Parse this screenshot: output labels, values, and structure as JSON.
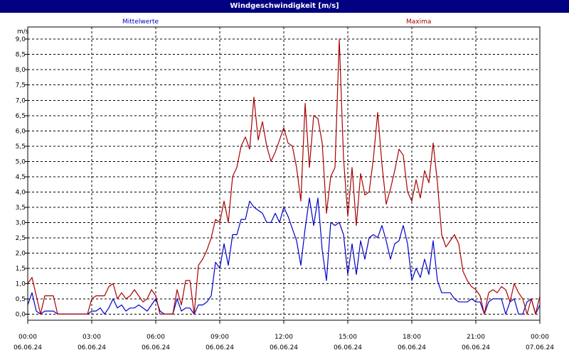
{
  "title": "Windgeschwindigkeit [m/s]",
  "chart_data": {
    "type": "line",
    "title": "Windgeschwindigkeit [m/s]",
    "ylabel": "m/s",
    "ylim": [
      -0.2,
      9.4
    ],
    "yticks": [
      "0,0",
      "0,5",
      "1,0",
      "1,5",
      "2,0",
      "2,5",
      "3,0",
      "3,5",
      "4,0",
      "4,5",
      "5,0",
      "5,5",
      "6,0",
      "6,5",
      "7,0",
      "7,5",
      "8,0",
      "8,5",
      "9,0"
    ],
    "xticks": [
      {
        "time": "00:00",
        "date": "06.06.24"
      },
      {
        "time": "03:00",
        "date": "06.06.24"
      },
      {
        "time": "06:00",
        "date": "06.06.24"
      },
      {
        "time": "09:00",
        "date": "06.06.24"
      },
      {
        "time": "12:00",
        "date": "06.06.24"
      },
      {
        "time": "15:00",
        "date": "06.06.24"
      },
      {
        "time": "18:00",
        "date": "06.06.24"
      },
      {
        "time": "21:00",
        "date": "06.06.24"
      },
      {
        "time": "00:00",
        "date": "07.06.24"
      }
    ],
    "grid": true,
    "series": [
      {
        "name": "Mittelwerte",
        "color": "#0000cc",
        "values": [
          [
            0.0,
            0.3
          ],
          [
            0.2,
            0.7
          ],
          [
            0.4,
            0.1
          ],
          [
            0.6,
            0.0
          ],
          [
            0.8,
            0.1
          ],
          [
            1.0,
            0.1
          ],
          [
            1.2,
            0.1
          ],
          [
            1.4,
            0.0
          ],
          [
            1.6,
            0.0
          ],
          [
            1.8,
            0.0
          ],
          [
            2.0,
            0.0
          ],
          [
            2.2,
            0.0
          ],
          [
            2.4,
            0.0
          ],
          [
            2.6,
            0.0
          ],
          [
            2.8,
            0.0
          ],
          [
            3.0,
            0.1
          ],
          [
            3.2,
            0.1
          ],
          [
            3.4,
            0.2
          ],
          [
            3.6,
            0.0
          ],
          [
            3.8,
            0.2
          ],
          [
            4.0,
            0.5
          ],
          [
            4.2,
            0.2
          ],
          [
            4.4,
            0.3
          ],
          [
            4.6,
            0.1
          ],
          [
            4.8,
            0.2
          ],
          [
            5.0,
            0.2
          ],
          [
            5.2,
            0.3
          ],
          [
            5.4,
            0.2
          ],
          [
            5.6,
            0.1
          ],
          [
            5.8,
            0.3
          ],
          [
            6.0,
            0.5
          ],
          [
            6.2,
            0.1
          ],
          [
            6.4,
            0.0
          ],
          [
            6.6,
            0.0
          ],
          [
            6.8,
            0.0
          ],
          [
            7.0,
            0.5
          ],
          [
            7.2,
            0.1
          ],
          [
            7.4,
            0.2
          ],
          [
            7.6,
            0.2
          ],
          [
            7.8,
            0.0
          ],
          [
            8.0,
            0.3
          ],
          [
            8.2,
            0.3
          ],
          [
            8.4,
            0.4
          ],
          [
            8.6,
            0.6
          ],
          [
            8.8,
            1.7
          ],
          [
            9.0,
            1.5
          ],
          [
            9.2,
            2.3
          ],
          [
            9.4,
            1.6
          ],
          [
            9.6,
            2.6
          ],
          [
            9.8,
            2.6
          ],
          [
            10.0,
            3.1
          ],
          [
            10.2,
            3.1
          ],
          [
            10.4,
            3.7
          ],
          [
            10.6,
            3.5
          ],
          [
            10.8,
            3.4
          ],
          [
            11.0,
            3.3
          ],
          [
            11.2,
            3.0
          ],
          [
            11.4,
            3.0
          ],
          [
            11.6,
            3.3
          ],
          [
            11.8,
            3.0
          ],
          [
            12.0,
            3.5
          ],
          [
            12.2,
            3.2
          ],
          [
            12.4,
            2.8
          ],
          [
            12.6,
            2.4
          ],
          [
            12.8,
            1.6
          ],
          [
            13.0,
            2.8
          ],
          [
            13.2,
            3.8
          ],
          [
            13.4,
            2.9
          ],
          [
            13.6,
            3.8
          ],
          [
            13.8,
            2.1
          ],
          [
            14.0,
            1.1
          ],
          [
            14.2,
            3.0
          ],
          [
            14.4,
            2.9
          ],
          [
            14.6,
            3.0
          ],
          [
            14.8,
            2.6
          ],
          [
            15.0,
            1.3
          ],
          [
            15.2,
            2.3
          ],
          [
            15.4,
            1.3
          ],
          [
            15.6,
            2.4
          ],
          [
            15.8,
            1.8
          ],
          [
            16.0,
            2.5
          ],
          [
            16.2,
            2.6
          ],
          [
            16.4,
            2.5
          ],
          [
            16.6,
            2.9
          ],
          [
            16.8,
            2.4
          ],
          [
            17.0,
            1.8
          ],
          [
            17.2,
            2.3
          ],
          [
            17.4,
            2.4
          ],
          [
            17.6,
            2.9
          ],
          [
            17.8,
            2.3
          ],
          [
            18.0,
            1.1
          ],
          [
            18.2,
            1.5
          ],
          [
            18.4,
            1.2
          ],
          [
            18.6,
            1.8
          ],
          [
            18.8,
            1.3
          ],
          [
            19.0,
            2.4
          ],
          [
            19.2,
            1.1
          ],
          [
            19.4,
            0.7
          ],
          [
            19.6,
            0.7
          ],
          [
            19.8,
            0.7
          ],
          [
            20.0,
            0.5
          ],
          [
            20.2,
            0.4
          ],
          [
            20.4,
            0.4
          ],
          [
            20.6,
            0.4
          ],
          [
            20.8,
            0.5
          ],
          [
            21.0,
            0.4
          ],
          [
            21.2,
            0.4
          ],
          [
            21.4,
            0.0
          ],
          [
            21.6,
            0.4
          ],
          [
            21.8,
            0.5
          ],
          [
            22.0,
            0.5
          ],
          [
            22.2,
            0.5
          ],
          [
            22.4,
            0.0
          ],
          [
            22.6,
            0.4
          ],
          [
            22.8,
            0.5
          ],
          [
            23.0,
            0.0
          ],
          [
            23.2,
            0.0
          ],
          [
            23.4,
            0.4
          ],
          [
            23.6,
            0.5
          ],
          [
            23.8,
            0.0
          ],
          [
            24.0,
            0.3
          ]
        ]
      },
      {
        "name": "Maxima",
        "color": "#aa0000",
        "values": [
          [
            0.0,
            1.0
          ],
          [
            0.2,
            1.2
          ],
          [
            0.4,
            0.6
          ],
          [
            0.6,
            0.0
          ],
          [
            0.8,
            0.6
          ],
          [
            1.0,
            0.6
          ],
          [
            1.2,
            0.6
          ],
          [
            1.4,
            0.0
          ],
          [
            1.6,
            0.0
          ],
          [
            1.8,
            0.0
          ],
          [
            2.0,
            0.0
          ],
          [
            2.2,
            0.0
          ],
          [
            2.4,
            0.0
          ],
          [
            2.6,
            0.0
          ],
          [
            2.8,
            0.0
          ],
          [
            3.0,
            0.5
          ],
          [
            3.2,
            0.6
          ],
          [
            3.4,
            0.6
          ],
          [
            3.6,
            0.6
          ],
          [
            3.8,
            0.9
          ],
          [
            4.0,
            1.0
          ],
          [
            4.2,
            0.5
          ],
          [
            4.4,
            0.7
          ],
          [
            4.6,
            0.5
          ],
          [
            4.8,
            0.6
          ],
          [
            5.0,
            0.8
          ],
          [
            5.2,
            0.6
          ],
          [
            5.4,
            0.4
          ],
          [
            5.6,
            0.5
          ],
          [
            5.8,
            0.8
          ],
          [
            6.0,
            0.6
          ],
          [
            6.2,
            0.0
          ],
          [
            6.4,
            0.0
          ],
          [
            6.6,
            0.0
          ],
          [
            6.8,
            0.0
          ],
          [
            7.0,
            0.8
          ],
          [
            7.2,
            0.3
          ],
          [
            7.4,
            1.1
          ],
          [
            7.6,
            1.1
          ],
          [
            7.8,
            0.0
          ],
          [
            8.0,
            1.6
          ],
          [
            8.2,
            1.8
          ],
          [
            8.4,
            2.1
          ],
          [
            8.6,
            2.5
          ],
          [
            8.8,
            3.1
          ],
          [
            9.0,
            3.0
          ],
          [
            9.2,
            3.7
          ],
          [
            9.4,
            3.0
          ],
          [
            9.6,
            4.5
          ],
          [
            9.8,
            4.8
          ],
          [
            10.0,
            5.5
          ],
          [
            10.2,
            5.8
          ],
          [
            10.4,
            5.4
          ],
          [
            10.6,
            7.1
          ],
          [
            10.8,
            5.7
          ],
          [
            11.0,
            6.3
          ],
          [
            11.2,
            5.5
          ],
          [
            11.4,
            5.0
          ],
          [
            11.6,
            5.3
          ],
          [
            11.8,
            5.7
          ],
          [
            12.0,
            6.1
          ],
          [
            12.2,
            5.6
          ],
          [
            12.4,
            5.5
          ],
          [
            12.6,
            4.8
          ],
          [
            12.8,
            3.7
          ],
          [
            13.0,
            6.9
          ],
          [
            13.2,
            4.8
          ],
          [
            13.4,
            6.5
          ],
          [
            13.6,
            6.4
          ],
          [
            13.8,
            5.6
          ],
          [
            14.0,
            3.3
          ],
          [
            14.2,
            4.5
          ],
          [
            14.4,
            4.8
          ],
          [
            14.6,
            9.0
          ],
          [
            14.8,
            5.1
          ],
          [
            15.0,
            3.2
          ],
          [
            15.2,
            4.8
          ],
          [
            15.4,
            2.9
          ],
          [
            15.6,
            4.6
          ],
          [
            15.8,
            3.9
          ],
          [
            16.0,
            4.0
          ],
          [
            16.2,
            5.1
          ],
          [
            16.4,
            6.6
          ],
          [
            16.6,
            4.9
          ],
          [
            16.8,
            3.6
          ],
          [
            17.0,
            4.1
          ],
          [
            17.2,
            4.7
          ],
          [
            17.4,
            5.4
          ],
          [
            17.6,
            5.2
          ],
          [
            17.8,
            4.0
          ],
          [
            18.0,
            3.7
          ],
          [
            18.2,
            4.4
          ],
          [
            18.4,
            3.8
          ],
          [
            18.6,
            4.7
          ],
          [
            18.8,
            4.3
          ],
          [
            19.0,
            5.6
          ],
          [
            19.2,
            4.3
          ],
          [
            19.4,
            2.6
          ],
          [
            19.6,
            2.2
          ],
          [
            19.8,
            2.4
          ],
          [
            20.0,
            2.6
          ],
          [
            20.2,
            2.3
          ],
          [
            20.4,
            1.4
          ],
          [
            20.6,
            1.1
          ],
          [
            20.8,
            0.9
          ],
          [
            21.0,
            0.8
          ],
          [
            21.2,
            0.6
          ],
          [
            21.4,
            0.0
          ],
          [
            21.6,
            0.7
          ],
          [
            21.8,
            0.8
          ],
          [
            22.0,
            0.7
          ],
          [
            22.2,
            0.9
          ],
          [
            22.4,
            0.8
          ],
          [
            22.6,
            0.4
          ],
          [
            22.8,
            1.0
          ],
          [
            23.0,
            0.7
          ],
          [
            23.2,
            0.5
          ],
          [
            23.4,
            0.0
          ],
          [
            23.6,
            0.5
          ],
          [
            23.8,
            0.0
          ],
          [
            24.0,
            0.6
          ]
        ]
      }
    ]
  }
}
